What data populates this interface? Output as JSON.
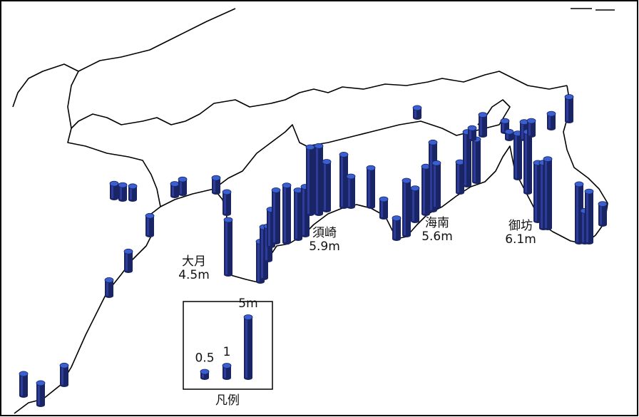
{
  "places": [
    {
      "name": "大月",
      "height": "4.5m"
    },
    {
      "name": "須崎",
      "height": "5.9m"
    },
    {
      "name": "海南",
      "height": "5.6m"
    },
    {
      "name": "御坊",
      "height": "6.1m"
    }
  ],
  "legend": {
    "title": "凡例",
    "items": [
      0.5,
      1,
      {
        "value": 5,
        "label": "5m"
      }
    ]
  },
  "sites": [
    1.8,
    1.8,
    1.6,
    1.3,
    1.6,
    1.6,
    1.2,
    1.2,
    1.1,
    1.0,
    1.2,
    1.2,
    1.8,
    4.5,
    3.3,
    4.2,
    2.8,
    3.0,
    4.3,
    4.7,
    4.0,
    4.0,
    5.5,
    5.6,
    4.0,
    4.3,
    2.5,
    3.2,
    1.5,
    1.7,
    4.5,
    2.7,
    3.9,
    5.6,
    3.6,
    2.5,
    4.4,
    3.5,
    0.9,
    1.7,
    0.8,
    0.9,
    0.6,
    3.7,
    1.4,
    5.0,
    1.2,
    4.8,
    5.4,
    5.7,
    1.2,
    2.0,
    4.8,
    2.6,
    4.2,
    1.7
  ]
}
